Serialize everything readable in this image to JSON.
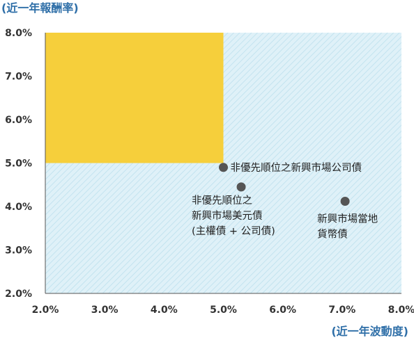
{
  "chart_data": {
    "type": "scatter",
    "ylabel": "(近一年報酬率)",
    "xlabel": "(近一年波動度)",
    "xlim": [
      2.0,
      8.0
    ],
    "ylim": [
      2.0,
      8.0
    ],
    "x_ticks": [
      "2.0%",
      "3.0%",
      "4.0%",
      "5.0%",
      "6.0%",
      "7.0%",
      "8.0%"
    ],
    "y_ticks": [
      "8.0%",
      "7.0%",
      "6.0%",
      "5.0%",
      "4.0%",
      "3.0%",
      "2.0%"
    ],
    "grid": false,
    "highlight_region": {
      "x": [
        2.0,
        5.0
      ],
      "y": [
        5.0,
        8.0
      ],
      "color": "#f6cf3b"
    },
    "background_color": "#d6eef7",
    "point_color": "#555555",
    "points": [
      {
        "x": 5.0,
        "y": 4.9,
        "label_lines": [
          "非優先順位之新興市場公司債"
        ]
      },
      {
        "x": 5.3,
        "y": 4.45,
        "label_lines": [
          "非優先順位之",
          "新興市場美元債",
          "(主權債 + 公司債)"
        ]
      },
      {
        "x": 7.05,
        "y": 4.12,
        "label_lines": [
          "新興市場當地",
          "貨幣債"
        ]
      }
    ]
  }
}
